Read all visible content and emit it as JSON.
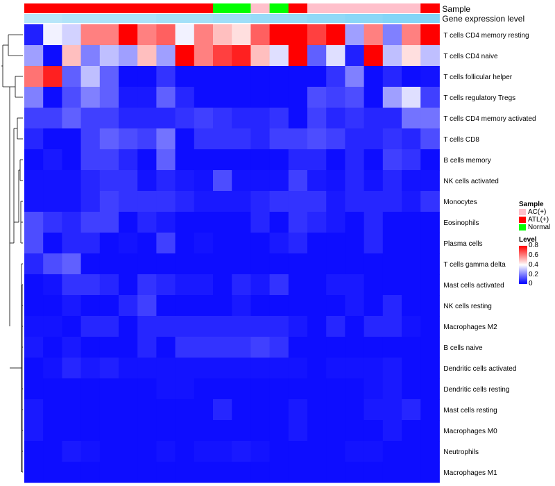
{
  "chart_data": {
    "type": "heatmap",
    "annotation_labels": [
      "Sample",
      "Gene expression level"
    ],
    "sample_groups": [
      "ATL(+)",
      "ATL(+)",
      "ATL(+)",
      "ATL(+)",
      "ATL(+)",
      "ATL(+)",
      "ATL(+)",
      "ATL(+)",
      "ATL(+)",
      "ATL(+)",
      "Normal",
      "Normal",
      "AC(+)",
      "Normal",
      "ATL(+)",
      "AC(+)",
      "AC(+)",
      "AC(+)",
      "AC(+)",
      "AC(+)",
      "AC(+)",
      "ATL(+)"
    ],
    "expression_level": [
      0.3,
      0.3,
      0.35,
      0.35,
      0.4,
      0.4,
      0.4,
      0.45,
      0.45,
      0.45,
      0.5,
      0.5,
      0.55,
      0.55,
      0.55,
      0.6,
      0.6,
      0.65,
      0.65,
      0.7,
      0.7,
      0.7
    ],
    "rows": [
      "T cells CD4 memory resting",
      "T cells CD4 naive",
      "T cells follicular helper",
      "T cells regulatory  Tregs",
      "T cells CD4 memory activated",
      "T cells CD8",
      "B cells memory",
      "NK cells activated",
      "Monocytes",
      "Eosinophils",
      "Plasma cells",
      "T cells gamma delta",
      "Mast cells activated",
      "NK cells resting",
      "Macrophages M2",
      "B cells naive",
      "Dendritic cells activated",
      "Dendritic cells resting",
      "Mast cells resting",
      "Macrophages M0",
      "Neutrophils",
      "Macrophages M1"
    ],
    "values": [
      [
        0.05,
        0.38,
        0.33,
        0.6,
        0.6,
        0.8,
        0.6,
        0.65,
        0.38,
        0.6,
        0.5,
        0.45,
        0.65,
        0.8,
        0.8,
        0.7,
        0.8,
        0.25,
        0.6,
        0.2,
        0.6,
        0.8
      ],
      [
        0.25,
        0.02,
        0.5,
        0.2,
        0.3,
        0.25,
        0.5,
        0.25,
        0.8,
        0.6,
        0.7,
        0.75,
        0.5,
        0.35,
        0.8,
        0.15,
        0.35,
        0.05,
        0.8,
        0.3,
        0.45,
        0.3
      ],
      [
        0.62,
        0.75,
        0.15,
        0.3,
        0.15,
        0.02,
        0.02,
        0.08,
        0.02,
        0.02,
        0.02,
        0.02,
        0.02,
        0.02,
        0.02,
        0.02,
        0.08,
        0.2,
        0.02,
        0.06,
        0.02,
        0.03
      ],
      [
        0.2,
        0.02,
        0.12,
        0.2,
        0.15,
        0.04,
        0.04,
        0.15,
        0.06,
        0.02,
        0.02,
        0.02,
        0.02,
        0.02,
        0.02,
        0.12,
        0.1,
        0.12,
        0.02,
        0.25,
        0.35,
        0.1
      ],
      [
        0.1,
        0.1,
        0.15,
        0.1,
        0.1,
        0.06,
        0.06,
        0.06,
        0.08,
        0.1,
        0.08,
        0.06,
        0.06,
        0.08,
        0.02,
        0.1,
        0.06,
        0.08,
        0.06,
        0.06,
        0.18,
        0.18
      ],
      [
        0.06,
        0.02,
        0.02,
        0.1,
        0.15,
        0.12,
        0.1,
        0.18,
        0.02,
        0.08,
        0.08,
        0.08,
        0.06,
        0.1,
        0.1,
        0.12,
        0.1,
        0.06,
        0.06,
        0.08,
        0.06,
        0.12
      ],
      [
        0.02,
        0.04,
        0.02,
        0.1,
        0.1,
        0.06,
        0.02,
        0.15,
        0.02,
        0.02,
        0.02,
        0.02,
        0.02,
        0.02,
        0.06,
        0.06,
        0.02,
        0.06,
        0.02,
        0.1,
        0.08,
        0.02
      ],
      [
        0.03,
        0.03,
        0.03,
        0.06,
        0.08,
        0.08,
        0.03,
        0.06,
        0.04,
        0.03,
        0.12,
        0.03,
        0.03,
        0.03,
        0.1,
        0.04,
        0.03,
        0.06,
        0.03,
        0.06,
        0.03,
        0.03
      ],
      [
        0.03,
        0.03,
        0.03,
        0.06,
        0.1,
        0.08,
        0.08,
        0.08,
        0.06,
        0.04,
        0.04,
        0.04,
        0.06,
        0.08,
        0.08,
        0.08,
        0.04,
        0.06,
        0.06,
        0.06,
        0.04,
        0.08
      ],
      [
        0.12,
        0.08,
        0.06,
        0.1,
        0.1,
        0.02,
        0.06,
        0.04,
        0.02,
        0.02,
        0.02,
        0.02,
        0.06,
        0.02,
        0.08,
        0.06,
        0.04,
        0.02,
        0.06,
        0.02,
        0.02,
        0.02
      ],
      [
        0.12,
        0.02,
        0.06,
        0.06,
        0.02,
        0.03,
        0.02,
        0.1,
        0.02,
        0.03,
        0.02,
        0.02,
        0.02,
        0.04,
        0.06,
        0.02,
        0.02,
        0.02,
        0.06,
        0.02,
        0.02,
        0.02
      ],
      [
        0.06,
        0.12,
        0.15,
        0.02,
        0.02,
        0.02,
        0.02,
        0.02,
        0.02,
        0.02,
        0.02,
        0.02,
        0.02,
        0.02,
        0.02,
        0.02,
        0.02,
        0.02,
        0.02,
        0.02,
        0.02,
        0.02
      ],
      [
        0.02,
        0.03,
        0.08,
        0.08,
        0.06,
        0.02,
        0.08,
        0.06,
        0.04,
        0.04,
        0.02,
        0.06,
        0.04,
        0.08,
        0.02,
        0.02,
        0.04,
        0.04,
        0.02,
        0.02,
        0.02,
        0.02
      ],
      [
        0.02,
        0.02,
        0.04,
        0.02,
        0.02,
        0.06,
        0.1,
        0.02,
        0.02,
        0.02,
        0.02,
        0.04,
        0.02,
        0.02,
        0.02,
        0.02,
        0.02,
        0.04,
        0.02,
        0.06,
        0.02,
        0.02
      ],
      [
        0.03,
        0.03,
        0.02,
        0.06,
        0.06,
        0.02,
        0.06,
        0.06,
        0.06,
        0.06,
        0.06,
        0.06,
        0.06,
        0.06,
        0.04,
        0.02,
        0.06,
        0.02,
        0.06,
        0.06,
        0.03,
        0.02
      ],
      [
        0.04,
        0.02,
        0.04,
        0.02,
        0.02,
        0.02,
        0.06,
        0.02,
        0.08,
        0.08,
        0.08,
        0.08,
        0.1,
        0.08,
        0.02,
        0.02,
        0.02,
        0.02,
        0.02,
        0.02,
        0.02,
        0.02
      ],
      [
        0.02,
        0.03,
        0.06,
        0.04,
        0.05,
        0.03,
        0.03,
        0.03,
        0.03,
        0.03,
        0.03,
        0.03,
        0.03,
        0.03,
        0.03,
        0.02,
        0.03,
        0.03,
        0.03,
        0.04,
        0.02,
        0.02
      ],
      [
        0.02,
        0.02,
        0.02,
        0.02,
        0.02,
        0.02,
        0.02,
        0.03,
        0.03,
        0.02,
        0.02,
        0.02,
        0.02,
        0.02,
        0.02,
        0.02,
        0.02,
        0.02,
        0.03,
        0.04,
        0.02,
        0.02
      ],
      [
        0.04,
        0.02,
        0.02,
        0.02,
        0.02,
        0.02,
        0.02,
        0.02,
        0.02,
        0.02,
        0.06,
        0.02,
        0.02,
        0.02,
        0.04,
        0.02,
        0.02,
        0.02,
        0.04,
        0.04,
        0.06,
        0.02
      ],
      [
        0.04,
        0.02,
        0.02,
        0.02,
        0.02,
        0.02,
        0.02,
        0.02,
        0.02,
        0.02,
        0.02,
        0.02,
        0.02,
        0.02,
        0.04,
        0.02,
        0.02,
        0.02,
        0.02,
        0.04,
        0.02,
        0.02
      ],
      [
        0.02,
        0.02,
        0.04,
        0.03,
        0.02,
        0.02,
        0.02,
        0.03,
        0.02,
        0.03,
        0.03,
        0.04,
        0.03,
        0.02,
        0.02,
        0.02,
        0.02,
        0.03,
        0.03,
        0.02,
        0.02,
        0.02
      ],
      [
        0.02,
        0.02,
        0.02,
        0.02,
        0.02,
        0.02,
        0.02,
        0.02,
        0.02,
        0.02,
        0.02,
        0.02,
        0.02,
        0.02,
        0.02,
        0.02,
        0.02,
        0.02,
        0.02,
        0.02,
        0.02,
        0.02
      ]
    ],
    "legend": {
      "sample_title": "Sample",
      "sample_items": [
        {
          "label": "AC(+)",
          "color": "#ffc0cb"
        },
        {
          "label": "ATL(+)",
          "color": "#ff0000"
        },
        {
          "label": "Normal",
          "color": "#00ff00"
        }
      ],
      "level_title": "Level",
      "level_ticks": [
        "0.8",
        "0.6",
        "0.4",
        "0.2",
        "0"
      ],
      "placement": "right"
    },
    "colors": {
      "low": "#0000ff",
      "mid": "#ffffff",
      "high": "#ff0000"
    },
    "value_range": [
      0,
      0.8
    ]
  }
}
